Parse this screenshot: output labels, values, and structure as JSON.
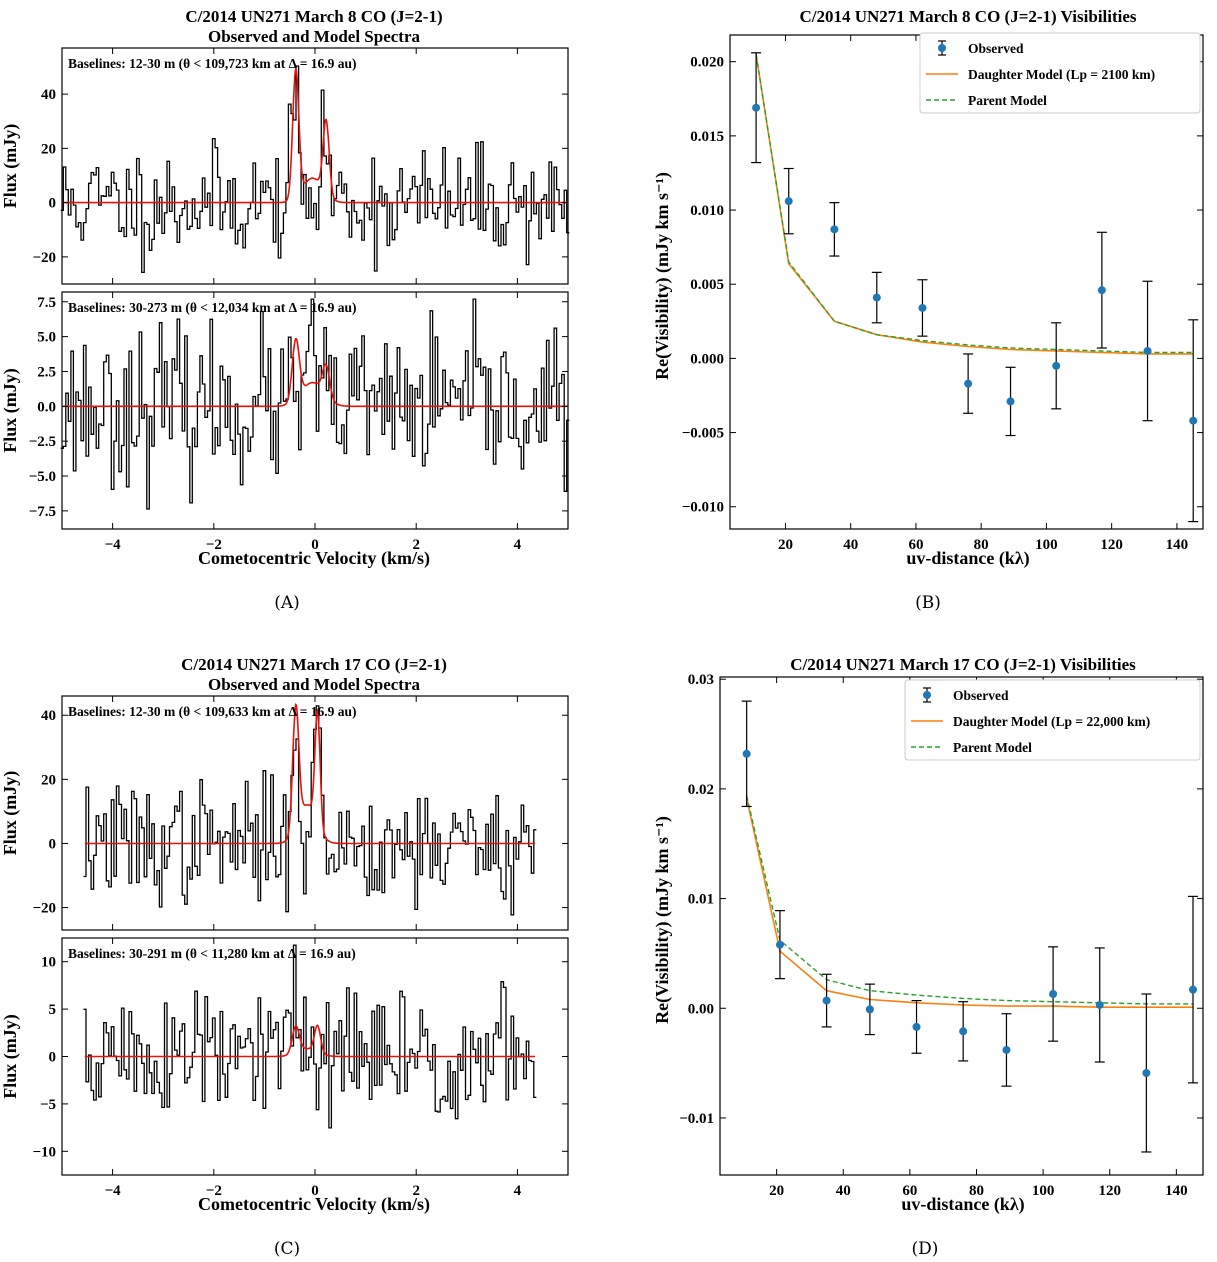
{
  "panels": [
    {
      "id": "A",
      "label": "(A)",
      "title": [
        "C/2014 UN271 March 8 CO (J=2-1)",
        "Observed and Model Spectra"
      ],
      "xlabel": "Cometocentric Velocity (km/s)"
    },
    {
      "id": "B",
      "label": "(B)",
      "title": [
        "C/2014 UN271 March 8 CO (J=2-1) Visibilities"
      ],
      "xlabel": "uv-distance (kλ)",
      "ylabel": "Re(Visibility) (mJy km s⁻¹)"
    },
    {
      "id": "C",
      "label": "(C)",
      "title": [
        "C/2014 UN271 March 17 CO (J=2-1)",
        "Observed and Model Spectra"
      ],
      "xlabel": "Cometocentric Velocity (km/s)"
    },
    {
      "id": "D",
      "label": "(D)",
      "title": [
        "C/2014 UN271 March 17 CO (J=2-1) Visibilities"
      ],
      "xlabel": "uv-distance (kλ)",
      "ylabel": "Re(Visibility) (mJy km s⁻¹)"
    }
  ],
  "chart_data": [
    {
      "panel": "A",
      "subplot": "top",
      "type": "line",
      "annotation": "Baselines: 12-30 m (θ < 109,723 km at Δ = 16.9 au)",
      "ylabel": "Flux (mJy)",
      "xlim": [
        -5,
        5
      ],
      "ylim": [
        -30,
        57
      ],
      "xticks": [
        -4,
        -2,
        0,
        2,
        4
      ],
      "yticks": [
        -20,
        0,
        20,
        40
      ],
      "observed_color": "#000000",
      "model_color": "#e8120c",
      "observed_rms": 12,
      "model_peaks": [
        {
          "v": -0.38,
          "amp": 47,
          "w": 0.06
        },
        {
          "v": 0.22,
          "amp": 27,
          "w": 0.06
        },
        {
          "v": -0.05,
          "amp": 9,
          "w": 0.2
        }
      ],
      "observed_peaks": [
        {
          "v": -0.4,
          "amp": 48
        },
        {
          "v": 0.22,
          "amp": 27
        }
      ]
    },
    {
      "panel": "A",
      "subplot": "bottom",
      "type": "line",
      "annotation": "Baselines: 30-273 m (θ < 12,034 km at Δ = 16.9 au)",
      "ylabel": "Flux (mJy)",
      "xlim": [
        -5,
        5
      ],
      "ylim": [
        -8.8,
        8.2
      ],
      "xticks": [
        -4,
        -2,
        0,
        2,
        4
      ],
      "yticks": [
        -7.5,
        -5.0,
        -2.5,
        0.0,
        2.5,
        5.0,
        7.5
      ],
      "observed_color": "#000000",
      "model_color": "#e8120c",
      "observed_rms": 3.2,
      "model_peaks": [
        {
          "v": -0.38,
          "amp": 4.3,
          "w": 0.07
        },
        {
          "v": 0.22,
          "amp": 2.2,
          "w": 0.07
        },
        {
          "v": -0.05,
          "amp": 1.7,
          "w": 0.22
        }
      ],
      "observed_peaks": [
        {
          "v": -0.1,
          "amp": 6.5
        }
      ]
    },
    {
      "panel": "B",
      "type": "scatter",
      "xlim": [
        3,
        148
      ],
      "ylim": [
        -0.0115,
        0.0218
      ],
      "xticks": [
        20,
        40,
        60,
        80,
        100,
        120,
        140
      ],
      "yticks": [
        -0.01,
        -0.005,
        0.0,
        0.005,
        0.01,
        0.015,
        0.02
      ],
      "ytick_labels": [
        "-0.010",
        "-0.005",
        "0.000",
        "0.005",
        "0.010",
        "0.015",
        "0.020"
      ],
      "legend": [
        "Observed",
        "Daughter Model (Lp = 2100 km)",
        "Parent Model"
      ],
      "legend_position": "top-right",
      "observed_color": "#1f77b4",
      "daughter_color": "#ff7f0e",
      "parent_color": "#2ca02c",
      "observed": {
        "x": [
          11,
          21,
          35,
          48,
          62,
          76,
          89,
          103,
          117,
          131,
          145
        ],
        "y": [
          0.0169,
          0.0106,
          0.0087,
          0.0041,
          0.0034,
          -0.0017,
          -0.0029,
          -0.0005,
          0.0046,
          0.0005,
          -0.0042
        ],
        "err": [
          0.0037,
          0.0022,
          0.0018,
          0.0017,
          0.0019,
          0.002,
          0.0023,
          0.0029,
          0.0039,
          0.0047,
          0.0068
        ]
      },
      "daughter_model": {
        "x": [
          11,
          21,
          35,
          48,
          62,
          76,
          89,
          103,
          117,
          131,
          145
        ],
        "y": [
          0.0205,
          0.0064,
          0.0025,
          0.0016,
          0.0011,
          0.0008,
          0.0006,
          0.0005,
          0.0004,
          0.0003,
          0.0003
        ]
      },
      "parent_model": {
        "x": [
          11,
          21,
          35,
          48,
          62,
          76,
          89,
          103,
          117,
          131,
          145
        ],
        "y": [
          0.0205,
          0.0065,
          0.0025,
          0.0016,
          0.0012,
          0.0009,
          0.0007,
          0.0006,
          0.0005,
          0.0004,
          0.0004
        ]
      }
    },
    {
      "panel": "C",
      "subplot": "top",
      "type": "line",
      "annotation": "Baselines: 12-30 m (θ < 109,633 km at Δ = 16.9 au)",
      "ylabel": "Flux (mJy)",
      "xlim": [
        -5,
        5
      ],
      "ylim": [
        -27,
        46
      ],
      "xrange_data": [
        -4.55,
        4.35
      ],
      "xticks": [
        -4,
        -2,
        0,
        2,
        4
      ],
      "yticks": [
        -20,
        0,
        20,
        40
      ],
      "observed_color": "#000000",
      "model_color": "#e8120c",
      "observed_rms": 11,
      "model_peaks": [
        {
          "v": -0.38,
          "amp": 38,
          "w": 0.06
        },
        {
          "v": 0.05,
          "amp": 35,
          "w": 0.05
        },
        {
          "v": -0.15,
          "amp": 12,
          "w": 0.18
        }
      ],
      "observed_peaks": [
        {
          "v": -0.38,
          "amp": 44
        },
        {
          "v": 0.05,
          "amp": 41
        }
      ]
    },
    {
      "panel": "C",
      "subplot": "bottom",
      "type": "line",
      "annotation": "Baselines: 30-291 m (θ < 11,280 km at Δ = 16.9 au)",
      "ylabel": "Flux (mJy)",
      "xlim": [
        -5,
        5
      ],
      "ylim": [
        -12.5,
        12.5
      ],
      "xrange_data": [
        -4.55,
        4.35
      ],
      "xticks": [
        -4,
        -2,
        0,
        2,
        4
      ],
      "yticks": [
        -10,
        -5,
        0,
        5,
        10
      ],
      "observed_color": "#000000",
      "model_color": "#e8120c",
      "observed_rms": 4.3,
      "model_peaks": [
        {
          "v": -0.38,
          "amp": 2.8,
          "w": 0.07
        },
        {
          "v": 0.05,
          "amp": 2.8,
          "w": 0.06
        },
        {
          "v": -0.15,
          "amp": 0.8,
          "w": 0.2
        }
      ],
      "observed_peaks": [
        {
          "v": -0.4,
          "amp": 7
        }
      ]
    },
    {
      "panel": "D",
      "type": "scatter",
      "xlim": [
        3,
        148
      ],
      "ylim": [
        -0.0152,
        0.0302
      ],
      "xticks": [
        20,
        40,
        60,
        80,
        100,
        120,
        140
      ],
      "yticks": [
        -0.01,
        0.0,
        0.01,
        0.02,
        0.03
      ],
      "ytick_labels": [
        "-0.01",
        "0.00",
        "0.01",
        "0.02",
        "0.03"
      ],
      "legend": [
        "Observed",
        "Daughter Model (Lp = 22,000 km)",
        "Parent Model"
      ],
      "legend_position": "top-right",
      "observed_color": "#1f77b4",
      "daughter_color": "#ff7f0e",
      "parent_color": "#2ca02c",
      "observed": {
        "x": [
          11,
          21,
          35,
          48,
          62,
          76,
          89,
          103,
          117,
          131,
          145
        ],
        "y": [
          0.0232,
          0.0058,
          0.0007,
          -0.0001,
          -0.0017,
          -0.0021,
          -0.0038,
          0.0013,
          0.0003,
          -0.0059,
          0.0017
        ],
        "err": [
          0.0048,
          0.0031,
          0.0024,
          0.0023,
          0.0024,
          0.0027,
          0.0033,
          0.0043,
          0.0052,
          0.0072,
          0.0085
        ]
      },
      "daughter_model": {
        "x": [
          11,
          21,
          35,
          48,
          62,
          76,
          89,
          103,
          117,
          131,
          145
        ],
        "y": [
          0.0192,
          0.0052,
          0.0016,
          0.0008,
          0.0005,
          0.0003,
          0.0002,
          0.0002,
          0.0001,
          0.0001,
          0.0001
        ]
      },
      "parent_model": {
        "x": [
          11,
          21,
          35,
          48,
          62,
          76,
          89,
          103,
          117,
          131,
          145
        ],
        "y": [
          0.0194,
          0.0062,
          0.0026,
          0.0016,
          0.0012,
          0.0009,
          0.0007,
          0.0006,
          0.0005,
          0.0004,
          0.0004
        ]
      }
    }
  ]
}
